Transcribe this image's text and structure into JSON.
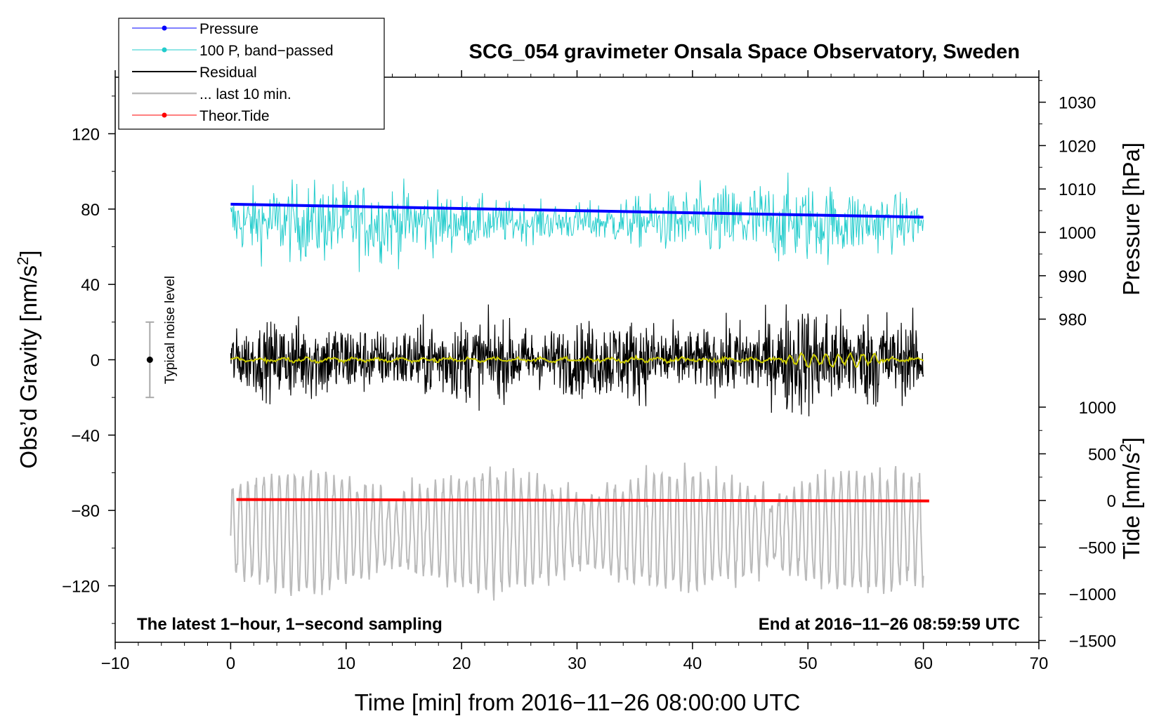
{
  "chart_data": {
    "type": "line",
    "title": "SCG_054 gravimeter Onsala Space Observatory, Sweden",
    "xlabel": "Time [min] from 2016−11−26 08:00:00 UTC",
    "ylabel_left": "Obs’d Gravity [nm/s",
    "ylabel_left_sup": "2",
    "ylabel_left_end": "]",
    "ylabel_right_pressure": "Pressure [hPa]",
    "ylabel_right_tide": "Tide [nm/s",
    "ylabel_right_tide_sup": "2",
    "ylabel_right_tide_end": "]",
    "xlim": [
      -10,
      70
    ],
    "ylim": [
      -150,
      150
    ],
    "pressure_axis": {
      "ticks": [
        980,
        990,
        1000,
        1010,
        1020,
        1030
      ],
      "ref_value": 1000
    },
    "tide_axis": {
      "ticks": [
        -1500,
        -1000,
        -500,
        0,
        500,
        1000
      ]
    },
    "x_ticks": [
      -10,
      0,
      10,
      20,
      30,
      40,
      50,
      60,
      70
    ],
    "y_ticks": [
      -120,
      -80,
      -40,
      0,
      40,
      80,
      120
    ],
    "x_tick_labels": [
      "−10",
      "0",
      "10",
      "20",
      "30",
      "40",
      "50",
      "60",
      "70"
    ],
    "y_tick_labels": [
      "−120",
      "−80",
      "−40",
      "0",
      "40",
      "80",
      "120"
    ],
    "pressure_tick_labels": [
      "980",
      "990",
      "1000",
      "1010",
      "1020",
      "1030"
    ],
    "tide_tick_labels": [
      "−1500",
      "−1000",
      "−500",
      "0",
      "500",
      "1000"
    ],
    "series": [
      {
        "name": "Pressure",
        "color": "#0000ff",
        "start_min": 0,
        "end_min": 60,
        "start_hpa": 1006.5,
        "end_hpa": 1003.5
      },
      {
        "name": "100 P, band−passed",
        "color": "#22cccc",
        "center_nms2": 73,
        "amplitude_nms2": 13
      },
      {
        "name": "Residual",
        "color": "#000000",
        "center_nms2": 0,
        "amplitude_nms2": 12
      },
      {
        "name": "... last 10 min.",
        "color": "#bbbbbb",
        "center_nms2": -91,
        "amplitude_nms2": 22
      },
      {
        "name": "Theor.Tide",
        "color": "#ff0000",
        "start_nms2": 10,
        "end_nms2": -5,
        "end_min": 60.5
      }
    ],
    "smoothed_residual_color": "#cccc00",
    "noise_bar": {
      "label": "Typical noise level",
      "x_min": -7,
      "center": 0,
      "half_range": 20
    },
    "annotation_left": "The latest 1−hour, 1−second sampling",
    "annotation_right": "End at 2016−11−26 08:59:59 UTC",
    "legend_position": "top-left"
  }
}
